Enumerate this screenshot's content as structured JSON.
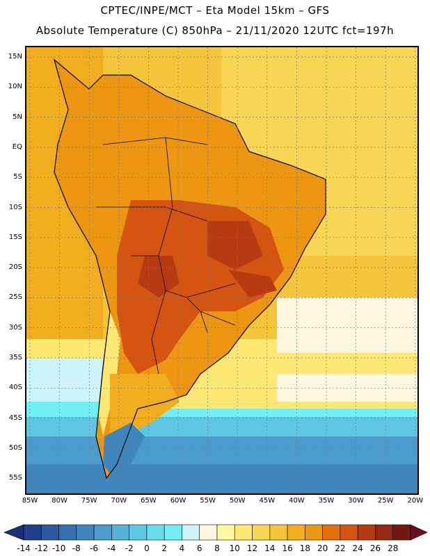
{
  "title": {
    "line1": "CPTEC/INPE/MCT –  Eta Model 15km – GFS",
    "line2": "Absolute Temperature (C) 850hPa – 21/11/2020 12UTC fct=197h"
  },
  "map": {
    "lat_labels": [
      "15N",
      "10N",
      "5N",
      "EQ",
      "5S",
      "10S",
      "15S",
      "20S",
      "25S",
      "30S",
      "35S",
      "40S",
      "45S",
      "50S",
      "55S"
    ],
    "lon_labels": [
      "85W",
      "80W",
      "75W",
      "70W",
      "65W",
      "60W",
      "55W",
      "50W",
      "45W",
      "40W",
      "35W",
      "30W",
      "25W",
      "20W"
    ],
    "region": "South America",
    "variable": "Absolute Temperature at 850hPa"
  },
  "colorbar": {
    "labels": [
      "-14",
      "-12",
      "-10",
      "-8",
      "-6",
      "-4",
      "-2",
      "0",
      "2",
      "4",
      "6",
      "8",
      "10",
      "12",
      "14",
      "16",
      "18",
      "20",
      "22",
      "24",
      "26",
      "28"
    ],
    "colors": [
      "#1f3f8a",
      "#2b5aa0",
      "#3570b0",
      "#3f86bf",
      "#4a9ccd",
      "#55b2da",
      "#5ec8e4",
      "#66dcec",
      "#70f0f4",
      "#cdf3fb",
      "#fff6e0",
      "#fffaa0",
      "#fce872",
      "#f8d654",
      "#f4c43a",
      "#f0ae1e",
      "#ec9612",
      "#e4720c",
      "#d45410",
      "#b83a12",
      "#942812",
      "#72190f"
    ],
    "under_color": "#1a2f74",
    "over_color": "#6b0d22"
  }
}
